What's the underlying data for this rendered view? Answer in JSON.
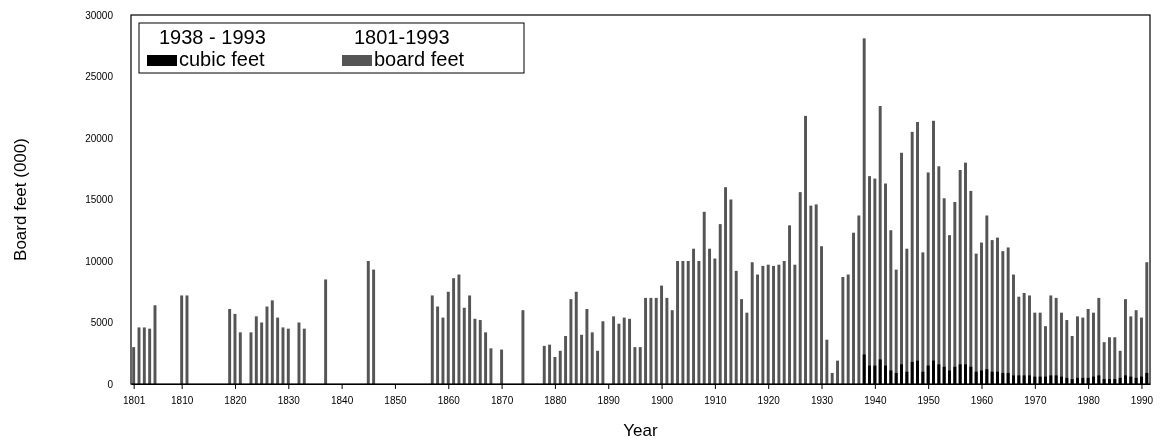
{
  "chart_data": {
    "type": "bar",
    "xlabel": "Year",
    "ylabel": "Board feet (000)",
    "x": [
      1801,
      1802,
      1803,
      1804,
      1805,
      1806,
      1807,
      1808,
      1809,
      1810,
      1811,
      1812,
      1813,
      1814,
      1815,
      1816,
      1817,
      1818,
      1819,
      1820,
      1821,
      1822,
      1823,
      1824,
      1825,
      1826,
      1827,
      1828,
      1829,
      1830,
      1831,
      1832,
      1833,
      1834,
      1835,
      1836,
      1837,
      1838,
      1839,
      1840,
      1841,
      1842,
      1843,
      1844,
      1845,
      1846,
      1847,
      1848,
      1849,
      1850,
      1851,
      1852,
      1853,
      1854,
      1855,
      1856,
      1857,
      1858,
      1859,
      1860,
      1861,
      1862,
      1863,
      1864,
      1865,
      1866,
      1867,
      1868,
      1869,
      1870,
      1871,
      1872,
      1873,
      1874,
      1875,
      1876,
      1877,
      1878,
      1879,
      1880,
      1881,
      1882,
      1883,
      1884,
      1885,
      1886,
      1887,
      1888,
      1889,
      1890,
      1891,
      1892,
      1893,
      1894,
      1895,
      1896,
      1897,
      1898,
      1899,
      1900,
      1901,
      1902,
      1903,
      1904,
      1905,
      1906,
      1907,
      1908,
      1909,
      1910,
      1911,
      1912,
      1913,
      1914,
      1915,
      1916,
      1917,
      1918,
      1919,
      1920,
      1921,
      1922,
      1923,
      1924,
      1925,
      1926,
      1927,
      1928,
      1929,
      1930,
      1931,
      1932,
      1933,
      1934,
      1935,
      1936,
      1937,
      1938,
      1939,
      1940,
      1941,
      1942,
      1943,
      1944,
      1945,
      1946,
      1947,
      1948,
      1949,
      1950,
      1951,
      1952,
      1953,
      1954,
      1955,
      1956,
      1957,
      1958,
      1959,
      1960,
      1961,
      1962,
      1963,
      1964,
      1965,
      1966,
      1967,
      1968,
      1969,
      1970,
      1971,
      1972,
      1973,
      1974,
      1975,
      1976,
      1977,
      1978,
      1979,
      1980,
      1981,
      1982,
      1983,
      1984,
      1985,
      1986,
      1987,
      1988,
      1989,
      1990,
      1991
    ],
    "series": [
      {
        "name": "board feet",
        "color": "#555555",
        "values": [
          3000,
          4600,
          4600,
          4500,
          6400,
          null,
          null,
          null,
          null,
          7200,
          7200,
          null,
          null,
          null,
          null,
          null,
          null,
          null,
          6100,
          5700,
          4200,
          null,
          4200,
          5500,
          5000,
          6300,
          6800,
          5400,
          4600,
          4500,
          null,
          5000,
          4500,
          null,
          null,
          null,
          8500,
          null,
          null,
          null,
          null,
          null,
          null,
          null,
          10000,
          9300,
          null,
          null,
          null,
          null,
          null,
          null,
          null,
          null,
          null,
          null,
          7200,
          6300,
          5400,
          7500,
          8600,
          8900,
          6200,
          7200,
          5300,
          5200,
          4200,
          2900,
          null,
          2800,
          null,
          null,
          null,
          6000,
          null,
          null,
          null,
          3100,
          3200,
          2200,
          2700,
          3900,
          6900,
          7500,
          4000,
          6100,
          4200,
          2700,
          5100,
          null,
          5500,
          4900,
          5400,
          5300,
          3000,
          3000,
          7000,
          7000,
          7000,
          8000,
          7000,
          6000,
          10000,
          10000,
          10000,
          11000,
          10000,
          14000,
          11000,
          10200,
          13000,
          16000,
          15000,
          9200,
          6900,
          5800,
          9900,
          8900,
          9600,
          9700,
          9600,
          9700,
          10000,
          12900,
          9700,
          15600,
          21800,
          14500,
          14600,
          11200,
          3600,
          900,
          1900,
          8700,
          8900,
          12300,
          13700,
          28100,
          16900,
          16700,
          22600,
          16300,
          12500,
          9300,
          18800,
          11000,
          20500,
          21300,
          10700,
          17200,
          21400,
          17700,
          15100,
          12100,
          14800,
          17400,
          18000,
          15700,
          10600,
          11500,
          13700,
          11700,
          11900,
          10800,
          11100,
          8900,
          7100,
          7400,
          7200,
          5800,
          5800,
          4700,
          7200,
          7000,
          5800,
          5200,
          3900,
          5500,
          5400,
          6100,
          5800,
          7000,
          3400,
          3800,
          3800,
          2700,
          6900,
          5500,
          6000,
          5400,
          9900
        ]
      },
      {
        "name": "cubic feet",
        "color": "#000000",
        "x": [
          1938,
          1939,
          1940,
          1941,
          1942,
          1943,
          1944,
          1945,
          1946,
          1947,
          1948,
          1949,
          1950,
          1951,
          1952,
          1953,
          1954,
          1955,
          1956,
          1957,
          1958,
          1959,
          1960,
          1961,
          1962,
          1963,
          1964,
          1965,
          1966,
          1967,
          1968,
          1969,
          1970,
          1971,
          1972,
          1973,
          1974,
          1975,
          1976,
          1977,
          1978,
          1979,
          1980,
          1981,
          1982,
          1983,
          1984,
          1985,
          1986,
          1987,
          1988,
          1989,
          1990,
          1991
        ],
        "values": [
          2400,
          1500,
          1500,
          2000,
          1500,
          1100,
          900,
          1600,
          1000,
          1800,
          1900,
          1000,
          1500,
          1900,
          1600,
          1400,
          1100,
          1400,
          1600,
          1600,
          1400,
          1000,
          1100,
          1200,
          1000,
          1000,
          900,
          900,
          700,
          700,
          700,
          700,
          600,
          600,
          600,
          700,
          700,
          600,
          500,
          400,
          500,
          500,
          500,
          600,
          700,
          400,
          400,
          400,
          500,
          700,
          600,
          500,
          600,
          900
        ]
      }
    ],
    "annotations": [
      "1801-1993",
      "1938 - 1993"
    ],
    "xlim": [
      1800.5,
      1991.6
    ],
    "xticks": [
      1801,
      1810,
      1820,
      1830,
      1840,
      1850,
      1860,
      1870,
      1880,
      1890,
      1900,
      1910,
      1920,
      1930,
      1940,
      1950,
      1960,
      1970,
      1980,
      1990
    ],
    "ylim": [
      0,
      30000
    ],
    "yticks": [
      0,
      5000,
      10000,
      15000,
      20000,
      25000,
      30000
    ],
    "legend": "top left"
  }
}
